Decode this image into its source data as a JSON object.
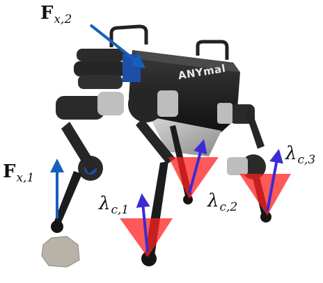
{
  "figure": {
    "brand_text": "ANYmal",
    "labels": {
      "fx2": {
        "symbol": "F",
        "subscript": "x,2"
      },
      "fx1": {
        "symbol": "F",
        "subscript": "x,1"
      },
      "lc1": {
        "symbol": "λ",
        "subscript": "c,1"
      },
      "lc2": {
        "symbol": "λ",
        "subscript": "c,2"
      },
      "lc3": {
        "symbol": "λ",
        "subscript": "c,3"
      }
    },
    "colors": {
      "force_arrow": "#1560bd",
      "contact_arrow": "#3a2bd6",
      "friction_cone": "#ff2020",
      "robot_body": "#1e1e1e",
      "accent": "#1e4fa8"
    },
    "icons": [
      "robot-icon",
      "rock-icon"
    ]
  }
}
